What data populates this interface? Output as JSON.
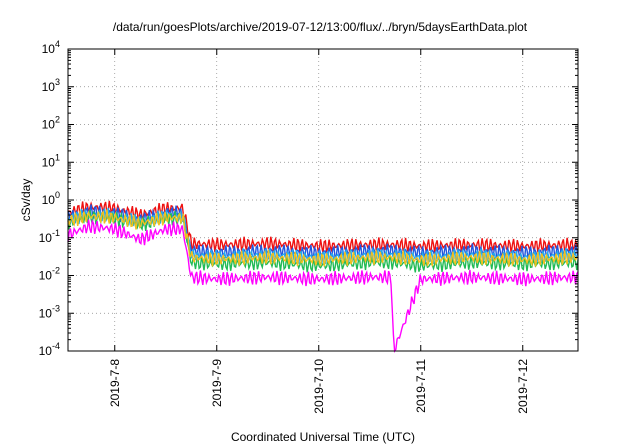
{
  "chart_data": {
    "type": "line",
    "title": "/data/run/goesPlots/archive/2019-07-12/13:00/flux/../bryn/5daysEarthData.plot",
    "xlabel": "Coordinated Universal Time (UTC)",
    "ylabel": "cSv/day",
    "yscale": "log",
    "ylim": [
      0.0001,
      10000
    ],
    "y_ticks": [
      {
        "value": 0.0001,
        "base": "10",
        "exp": "-4"
      },
      {
        "value": 0.001,
        "base": "10",
        "exp": "-3"
      },
      {
        "value": 0.01,
        "base": "10",
        "exp": "-2"
      },
      {
        "value": 0.1,
        "base": "10",
        "exp": "-1"
      },
      {
        "value": 1,
        "base": "10",
        "exp": "0"
      },
      {
        "value": 10,
        "base": "10",
        "exp": "1"
      },
      {
        "value": 100,
        "base": "10",
        "exp": "2"
      },
      {
        "value": 1000,
        "base": "10",
        "exp": "3"
      },
      {
        "value": 10000,
        "base": "10",
        "exp": "4"
      }
    ],
    "xlim": [
      "2019-07-07T13:00",
      "2019-07-12T13:00"
    ],
    "x_ticks": [
      "2019-7-8",
      "2019-7-9",
      "2019-7-10",
      "2019-7-11",
      "2019-7-12"
    ],
    "grid": true,
    "x": [
      "2019-07-07T13:00",
      "2019-07-07T18:00",
      "2019-07-08T00:00",
      "2019-07-08T06:00",
      "2019-07-08T12:00",
      "2019-07-08T16:00",
      "2019-07-08T18:00",
      "2019-07-09T00:00",
      "2019-07-09T12:00",
      "2019-07-10T00:00",
      "2019-07-10T12:00",
      "2019-07-10T17:00",
      "2019-07-10T17:40",
      "2019-07-11T00:00",
      "2019-07-11T12:00",
      "2019-07-12T00:00",
      "2019-07-12T13:00"
    ],
    "series": [
      {
        "color": "#ee1111",
        "values": [
          0.45,
          0.65,
          0.6,
          0.4,
          0.6,
          0.6,
          0.07,
          0.065,
          0.07,
          0.06,
          0.065,
          0.065,
          0.065,
          0.06,
          0.065,
          0.06,
          0.065
        ]
      },
      {
        "color": "#2255dd",
        "values": [
          0.35,
          0.5,
          0.45,
          0.3,
          0.45,
          0.45,
          0.045,
          0.04,
          0.045,
          0.04,
          0.045,
          0.045,
          0.045,
          0.04,
          0.045,
          0.04,
          0.045
        ]
      },
      {
        "color": "#22aaee",
        "values": [
          0.3,
          0.42,
          0.38,
          0.26,
          0.38,
          0.38,
          0.035,
          0.032,
          0.035,
          0.03,
          0.035,
          0.035,
          0.035,
          0.03,
          0.035,
          0.03,
          0.035
        ]
      },
      {
        "color": "#22bb55",
        "values": [
          0.25,
          0.35,
          0.32,
          0.22,
          0.32,
          0.32,
          0.022,
          0.02,
          0.022,
          0.018,
          0.022,
          0.022,
          0.022,
          0.018,
          0.022,
          0.02,
          0.022
        ]
      },
      {
        "color": "#f0c020",
        "values": [
          0.28,
          0.38,
          0.34,
          0.24,
          0.34,
          0.34,
          0.03,
          0.027,
          0.03,
          0.026,
          0.03,
          0.03,
          0.03,
          0.026,
          0.03,
          0.026,
          0.03
        ]
      },
      {
        "color": "#ff00ff",
        "values": [
          0.12,
          0.2,
          0.17,
          0.09,
          0.17,
          0.17,
          0.009,
          0.008,
          0.009,
          0.008,
          0.009,
          0.009,
          0.0001,
          0.008,
          0.009,
          0.008,
          0.009
        ]
      }
    ]
  }
}
